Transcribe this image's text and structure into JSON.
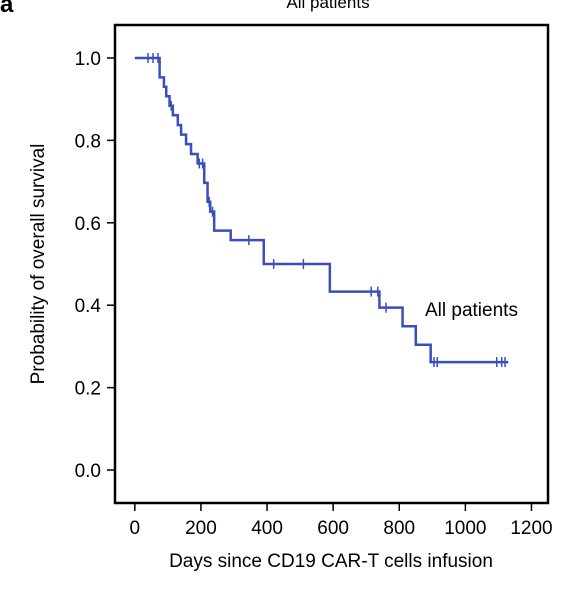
{
  "panel_letter": "a",
  "chart_data": {
    "type": "line",
    "title": "All patients",
    "xlabel": "Days since CD19 CAR-T cells infusion",
    "ylabel": "Probability of overall survival",
    "xlim": [
      -60,
      1250
    ],
    "ylim": [
      -0.08,
      1.08
    ],
    "xticks": [
      0,
      200,
      400,
      600,
      800,
      1000,
      1200
    ],
    "yticks": [
      0.0,
      0.2,
      0.4,
      0.6,
      0.8,
      1.0
    ],
    "xtick_labels": [
      "0",
      "200",
      "400",
      "600",
      "800",
      "1000",
      "1200"
    ],
    "ytick_labels": [
      "0.0",
      "0.2",
      "0.4",
      "0.6",
      "0.8",
      "1.0"
    ],
    "step": true,
    "grid": false,
    "series": [
      {
        "name": "All patients",
        "color": "#3a4fbf",
        "x": [
          0,
          75,
          88,
          95,
          105,
          115,
          130,
          140,
          155,
          170,
          190,
          210,
          220,
          228,
          240,
          290,
          390,
          590,
          740,
          810,
          850,
          895,
          1130
        ],
        "y": [
          1.0,
          0.953,
          0.93,
          0.907,
          0.884,
          0.861,
          0.837,
          0.814,
          0.791,
          0.767,
          0.744,
          0.697,
          0.651,
          0.627,
          0.581,
          0.558,
          0.5,
          0.433,
          0.394,
          0.349,
          0.304,
          0.262,
          0.262
        ],
        "censor_x": [
          40,
          55,
          70,
          110,
          195,
          205,
          225,
          235,
          345,
          420,
          510,
          715,
          735,
          760,
          905,
          915,
          1095,
          1110,
          1120
        ],
        "label": "All patients"
      }
    ]
  }
}
